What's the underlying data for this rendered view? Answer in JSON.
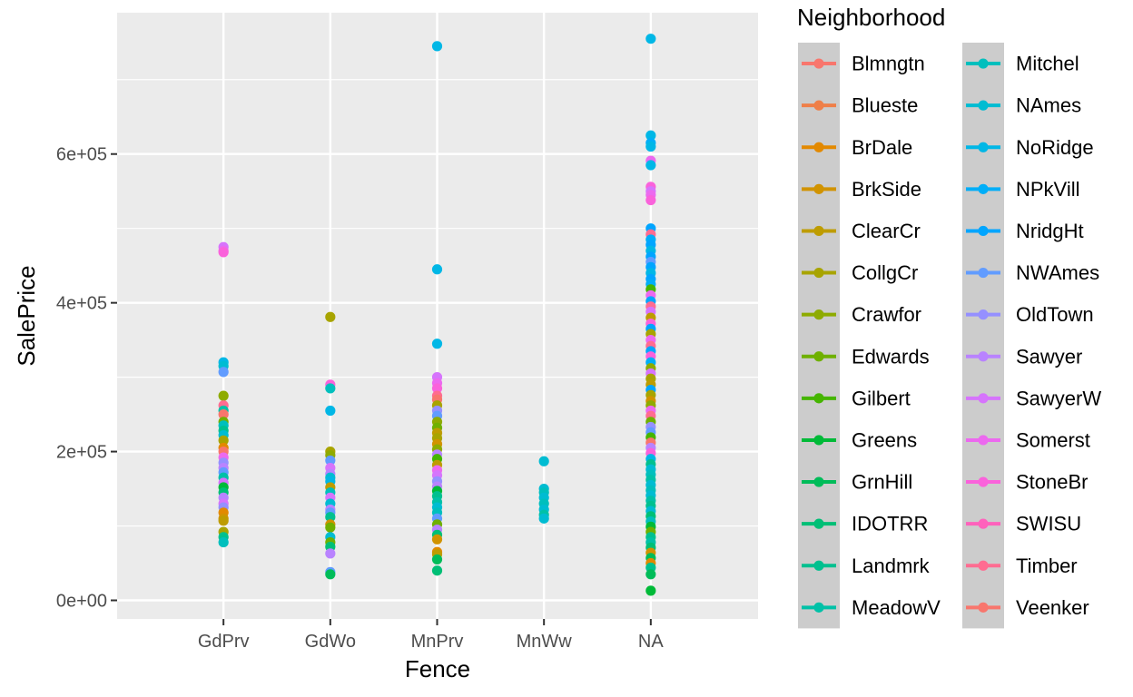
{
  "chart_data": {
    "type": "scatter",
    "title": "",
    "xlabel": "Fence",
    "ylabel": "SalePrice",
    "ylim": [
      -25000,
      790000
    ],
    "grid": true,
    "x_categories": [
      "GdPrv",
      "GdWo",
      "MnPrv",
      "MnWw",
      "NA"
    ],
    "y_ticks": [
      {
        "value": 0,
        "label": "0e+00"
      },
      {
        "value": 200000,
        "label": "2e+05"
      },
      {
        "value": 400000,
        "label": "4e+05"
      },
      {
        "value": 600000,
        "label": "6e+05"
      }
    ],
    "legend": {
      "title": "Neighborhood",
      "placement": "right",
      "entries": [
        {
          "name": "Blmngtn",
          "color": "#F8766D"
        },
        {
          "name": "Blueste",
          "color": "#EF7F48"
        },
        {
          "name": "BrDale",
          "color": "#E38900"
        },
        {
          "name": "BrkSide",
          "color": "#D19300"
        },
        {
          "name": "ClearCr",
          "color": "#BE9C00"
        },
        {
          "name": "CollgCr",
          "color": "#A8A400"
        },
        {
          "name": "Crawfor",
          "color": "#8EAB00"
        },
        {
          "name": "Edwards",
          "color": "#6FB000"
        },
        {
          "name": "Gilbert",
          "color": "#45B500"
        },
        {
          "name": "Greens",
          "color": "#00BA38"
        },
        {
          "name": "GrnHill",
          "color": "#00BC59"
        },
        {
          "name": "IDOTRR",
          "color": "#00BF76"
        },
        {
          "name": "Landmrk",
          "color": "#00C08F"
        },
        {
          "name": "MeadowV",
          "color": "#00C1A7"
        },
        {
          "name": "Mitchel",
          "color": "#00BFBD"
        },
        {
          "name": "NAmes",
          "color": "#00BCD2"
        },
        {
          "name": "NoRidge",
          "color": "#00B7E6"
        },
        {
          "name": "NPkVill",
          "color": "#00AEF8"
        },
        {
          "name": "NridgHt",
          "color": "#00A5FF"
        },
        {
          "name": "NWAmes",
          "color": "#619CFF"
        },
        {
          "name": "OldTown",
          "color": "#9590FF"
        },
        {
          "name": "Sawyer",
          "color": "#B983FF"
        },
        {
          "name": "SawyerW",
          "color": "#D674FC"
        },
        {
          "name": "Somerst",
          "color": "#EC69EF"
        },
        {
          "name": "StoneBr",
          "color": "#FA62DB"
        },
        {
          "name": "SWISU",
          "color": "#FF62BC"
        },
        {
          "name": "Timber",
          "color": "#FF6C91"
        },
        {
          "name": "Veenker",
          "color": "#F8766D"
        }
      ]
    },
    "points": [
      {
        "x": "GdPrv",
        "y": 475000,
        "n": "SawyerW"
      },
      {
        "x": "GdPrv",
        "y": 470000,
        "n": "Somerst"
      },
      {
        "x": "GdPrv",
        "y": 468000,
        "n": "StoneBr"
      },
      {
        "x": "GdPrv",
        "y": 320000,
        "n": "NoRidge"
      },
      {
        "x": "GdPrv",
        "y": 315000,
        "n": "NAmes"
      },
      {
        "x": "GdPrv",
        "y": 307000,
        "n": "NWAmes"
      },
      {
        "x": "GdPrv",
        "y": 275000,
        "n": "Crawfor"
      },
      {
        "x": "GdPrv",
        "y": 262000,
        "n": "Timber"
      },
      {
        "x": "GdPrv",
        "y": 255000,
        "n": "MeadowV"
      },
      {
        "x": "GdPrv",
        "y": 250000,
        "n": "Veenker"
      },
      {
        "x": "GdPrv",
        "y": 240000,
        "n": "Edwards"
      },
      {
        "x": "GdPrv",
        "y": 235000,
        "n": "Mitchel"
      },
      {
        "x": "GdPrv",
        "y": 228000,
        "n": "Landmrk"
      },
      {
        "x": "GdPrv",
        "y": 222000,
        "n": "NAmes"
      },
      {
        "x": "GdPrv",
        "y": 215000,
        "n": "CollgCr"
      },
      {
        "x": "GdPrv",
        "y": 205000,
        "n": "BrDale"
      },
      {
        "x": "GdPrv",
        "y": 200000,
        "n": "Blmngtn"
      },
      {
        "x": "GdPrv",
        "y": 192000,
        "n": "Somerst"
      },
      {
        "x": "GdPrv",
        "y": 185000,
        "n": "OldTown"
      },
      {
        "x": "GdPrv",
        "y": 178000,
        "n": "Sawyer"
      },
      {
        "x": "GdPrv",
        "y": 172000,
        "n": "NWAmes"
      },
      {
        "x": "GdPrv",
        "y": 165000,
        "n": "MeadowV"
      },
      {
        "x": "GdPrv",
        "y": 158000,
        "n": "SawyerW"
      },
      {
        "x": "GdPrv",
        "y": 152000,
        "n": "Greens"
      },
      {
        "x": "GdPrv",
        "y": 145000,
        "n": "IDOTRR"
      },
      {
        "x": "GdPrv",
        "y": 138000,
        "n": "Sawyer"
      },
      {
        "x": "GdPrv",
        "y": 130000,
        "n": "SawyerW"
      },
      {
        "x": "GdPrv",
        "y": 125000,
        "n": "OldTown"
      },
      {
        "x": "GdPrv",
        "y": 118000,
        "n": "BrDale"
      },
      {
        "x": "GdPrv",
        "y": 110000,
        "n": "BrkSide"
      },
      {
        "x": "GdPrv",
        "y": 107000,
        "n": "ClearCr"
      },
      {
        "x": "GdPrv",
        "y": 92000,
        "n": "CollgCr"
      },
      {
        "x": "GdPrv",
        "y": 85000,
        "n": "Landmrk"
      },
      {
        "x": "GdPrv",
        "y": 78000,
        "n": "Mitchel"
      },
      {
        "x": "GdWo",
        "y": 381000,
        "n": "CollgCr"
      },
      {
        "x": "GdWo",
        "y": 290000,
        "n": "StoneBr"
      },
      {
        "x": "GdWo",
        "y": 285000,
        "n": "Mitchel"
      },
      {
        "x": "GdWo",
        "y": 255000,
        "n": "NoRidge"
      },
      {
        "x": "GdWo",
        "y": 200000,
        "n": "CollgCr"
      },
      {
        "x": "GdWo",
        "y": 195000,
        "n": "Crawfor"
      },
      {
        "x": "GdWo",
        "y": 188000,
        "n": "NWAmes"
      },
      {
        "x": "GdWo",
        "y": 178000,
        "n": "SawyerW"
      },
      {
        "x": "GdWo",
        "y": 170000,
        "n": "Sawyer"
      },
      {
        "x": "GdWo",
        "y": 165000,
        "n": "NAmes"
      },
      {
        "x": "GdWo",
        "y": 160000,
        "n": "NoRidge"
      },
      {
        "x": "GdWo",
        "y": 152000,
        "n": "ClearCr"
      },
      {
        "x": "GdWo",
        "y": 145000,
        "n": "Mitchel"
      },
      {
        "x": "GdWo",
        "y": 138000,
        "n": "SawyerW"
      },
      {
        "x": "GdWo",
        "y": 130000,
        "n": "NAmes"
      },
      {
        "x": "GdWo",
        "y": 122000,
        "n": "Sawyer"
      },
      {
        "x": "GdWo",
        "y": 118000,
        "n": "NWAmes"
      },
      {
        "x": "GdWo",
        "y": 112000,
        "n": "Landmrk"
      },
      {
        "x": "GdWo",
        "y": 102000,
        "n": "BrkSide"
      },
      {
        "x": "GdWo",
        "y": 98000,
        "n": "Edwards"
      },
      {
        "x": "GdWo",
        "y": 85000,
        "n": "NAmes"
      },
      {
        "x": "GdWo",
        "y": 78000,
        "n": "Edwards"
      },
      {
        "x": "GdWo",
        "y": 72000,
        "n": "IDOTRR"
      },
      {
        "x": "GdWo",
        "y": 63000,
        "n": "Sawyer"
      },
      {
        "x": "GdWo",
        "y": 38000,
        "n": "NWAmes"
      },
      {
        "x": "GdWo",
        "y": 35000,
        "n": "GrnHill"
      },
      {
        "x": "MnPrv",
        "y": 745000,
        "n": "NoRidge"
      },
      {
        "x": "MnPrv",
        "y": 445000,
        "n": "NoRidge"
      },
      {
        "x": "MnPrv",
        "y": 345000,
        "n": "NoRidge"
      },
      {
        "x": "MnPrv",
        "y": 300000,
        "n": "SawyerW"
      },
      {
        "x": "MnPrv",
        "y": 292000,
        "n": "Somerst"
      },
      {
        "x": "MnPrv",
        "y": 285000,
        "n": "StoneBr"
      },
      {
        "x": "MnPrv",
        "y": 275000,
        "n": "Timber"
      },
      {
        "x": "MnPrv",
        "y": 270000,
        "n": "Blmngtn"
      },
      {
        "x": "MnPrv",
        "y": 262000,
        "n": "CollgCr"
      },
      {
        "x": "MnPrv",
        "y": 255000,
        "n": "OldTown"
      },
      {
        "x": "MnPrv",
        "y": 248000,
        "n": "NWAmes"
      },
      {
        "x": "MnPrv",
        "y": 240000,
        "n": "Crawfor"
      },
      {
        "x": "MnPrv",
        "y": 232000,
        "n": "Edwards"
      },
      {
        "x": "MnPrv",
        "y": 225000,
        "n": "ClearCr"
      },
      {
        "x": "MnPrv",
        "y": 218000,
        "n": "CollgCr"
      },
      {
        "x": "MnPrv",
        "y": 210000,
        "n": "BrkSide"
      },
      {
        "x": "MnPrv",
        "y": 203000,
        "n": "Crawfor"
      },
      {
        "x": "MnPrv",
        "y": 196000,
        "n": "Sawyer"
      },
      {
        "x": "MnPrv",
        "y": 190000,
        "n": "Gilbert"
      },
      {
        "x": "MnPrv",
        "y": 182000,
        "n": "ClearCr"
      },
      {
        "x": "MnPrv",
        "y": 175000,
        "n": "Somerst"
      },
      {
        "x": "MnPrv",
        "y": 168000,
        "n": "SawyerW"
      },
      {
        "x": "MnPrv",
        "y": 160000,
        "n": "OldTown"
      },
      {
        "x": "MnPrv",
        "y": 153000,
        "n": "Sawyer"
      },
      {
        "x": "MnPrv",
        "y": 147000,
        "n": "Greens"
      },
      {
        "x": "MnPrv",
        "y": 140000,
        "n": "Landmrk"
      },
      {
        "x": "MnPrv",
        "y": 132000,
        "n": "MeadowV"
      },
      {
        "x": "MnPrv",
        "y": 125000,
        "n": "NAmes"
      },
      {
        "x": "MnPrv",
        "y": 118000,
        "n": "Mitchel"
      },
      {
        "x": "MnPrv",
        "y": 110000,
        "n": "NWAmes"
      },
      {
        "x": "MnPrv",
        "y": 102000,
        "n": "Edwards"
      },
      {
        "x": "MnPrv",
        "y": 95000,
        "n": "Sawyer"
      },
      {
        "x": "MnPrv",
        "y": 88000,
        "n": "IDOTRR"
      },
      {
        "x": "MnPrv",
        "y": 82000,
        "n": "BrkSide"
      },
      {
        "x": "MnPrv",
        "y": 65000,
        "n": "BrDale"
      },
      {
        "x": "MnPrv",
        "y": 62000,
        "n": "ClearCr"
      },
      {
        "x": "MnPrv",
        "y": 55000,
        "n": "GrnHill"
      },
      {
        "x": "MnPrv",
        "y": 40000,
        "n": "IDOTRR"
      },
      {
        "x": "MnWw",
        "y": 187000,
        "n": "NAmes"
      },
      {
        "x": "MnWw",
        "y": 150000,
        "n": "NAmes"
      },
      {
        "x": "MnWw",
        "y": 145000,
        "n": "Mitchel"
      },
      {
        "x": "MnWw",
        "y": 138000,
        "n": "NAmes"
      },
      {
        "x": "MnWw",
        "y": 130000,
        "n": "Mitchel"
      },
      {
        "x": "MnWw",
        "y": 122000,
        "n": "NAmes"
      },
      {
        "x": "MnWw",
        "y": 115000,
        "n": "MeadowV"
      },
      {
        "x": "MnWw",
        "y": 110000,
        "n": "NAmes"
      },
      {
        "x": "NA",
        "y": 755000,
        "n": "NoRidge"
      },
      {
        "x": "NA",
        "y": 625000,
        "n": "NoRidge"
      },
      {
        "x": "NA",
        "y": 615000,
        "n": "NPkVill"
      },
      {
        "x": "NA",
        "y": 610000,
        "n": "NoRidge"
      },
      {
        "x": "NA",
        "y": 591000,
        "n": "Somerst"
      },
      {
        "x": "NA",
        "y": 585000,
        "n": "NoRidge"
      },
      {
        "x": "NA",
        "y": 556000,
        "n": "StoneBr"
      },
      {
        "x": "NA",
        "y": 550000,
        "n": "SawyerW"
      },
      {
        "x": "NA",
        "y": 545000,
        "n": "Somerst"
      },
      {
        "x": "NA",
        "y": 538000,
        "n": "StoneBr"
      },
      {
        "x": "NA",
        "y": 500000,
        "n": "NridgHt"
      },
      {
        "x": "NA",
        "y": 492000,
        "n": "Timber"
      },
      {
        "x": "NA",
        "y": 485000,
        "n": "NPkVill"
      },
      {
        "x": "NA",
        "y": 478000,
        "n": "NridgHt"
      },
      {
        "x": "NA",
        "y": 470000,
        "n": "NoRidge"
      },
      {
        "x": "NA",
        "y": 462000,
        "n": "NridgHt"
      },
      {
        "x": "NA",
        "y": 455000,
        "n": "NWAmes"
      },
      {
        "x": "NA",
        "y": 448000,
        "n": "NridgHt"
      },
      {
        "x": "NA",
        "y": 440000,
        "n": "NoRidge"
      },
      {
        "x": "NA",
        "y": 432000,
        "n": "NridgHt"
      },
      {
        "x": "NA",
        "y": 425000,
        "n": "NPkVill"
      },
      {
        "x": "NA",
        "y": 418000,
        "n": "Gilbert"
      },
      {
        "x": "NA",
        "y": 410000,
        "n": "Somerst"
      },
      {
        "x": "NA",
        "y": 402000,
        "n": "NridgHt"
      },
      {
        "x": "NA",
        "y": 395000,
        "n": "Timber"
      },
      {
        "x": "NA",
        "y": 388000,
        "n": "SawyerW"
      },
      {
        "x": "NA",
        "y": 380000,
        "n": "ClearCr"
      },
      {
        "x": "NA",
        "y": 372000,
        "n": "StoneBr"
      },
      {
        "x": "NA",
        "y": 365000,
        "n": "NridgHt"
      },
      {
        "x": "NA",
        "y": 358000,
        "n": "CollgCr"
      },
      {
        "x": "NA",
        "y": 350000,
        "n": "Somerst"
      },
      {
        "x": "NA",
        "y": 342000,
        "n": "Timber"
      },
      {
        "x": "NA",
        "y": 335000,
        "n": "NridgHt"
      },
      {
        "x": "NA",
        "y": 328000,
        "n": "StoneBr"
      },
      {
        "x": "NA",
        "y": 320000,
        "n": "NPkVill"
      },
      {
        "x": "NA",
        "y": 312000,
        "n": "Crawfor"
      },
      {
        "x": "NA",
        "y": 305000,
        "n": "SawyerW"
      },
      {
        "x": "NA",
        "y": 298000,
        "n": "CollgCr"
      },
      {
        "x": "NA",
        "y": 290000,
        "n": "ClearCr"
      },
      {
        "x": "NA",
        "y": 283000,
        "n": "NridgHt"
      },
      {
        "x": "NA",
        "y": 276000,
        "n": "CollgCr"
      },
      {
        "x": "NA",
        "y": 268000,
        "n": "BrkSide"
      },
      {
        "x": "NA",
        "y": 262000,
        "n": "Crawfor"
      },
      {
        "x": "NA",
        "y": 255000,
        "n": "Somerst"
      },
      {
        "x": "NA",
        "y": 248000,
        "n": "Timber"
      },
      {
        "x": "NA",
        "y": 240000,
        "n": "Edwards"
      },
      {
        "x": "NA",
        "y": 233000,
        "n": "OldTown"
      },
      {
        "x": "NA",
        "y": 226000,
        "n": "NWAmes"
      },
      {
        "x": "NA",
        "y": 219000,
        "n": "Gilbert"
      },
      {
        "x": "NA",
        "y": 212000,
        "n": "Blmngtn"
      },
      {
        "x": "NA",
        "y": 205000,
        "n": "Sawyer"
      },
      {
        "x": "NA",
        "y": 198000,
        "n": "StoneBr"
      },
      {
        "x": "NA",
        "y": 190000,
        "n": "NoRidge"
      },
      {
        "x": "NA",
        "y": 183000,
        "n": "Landmrk"
      },
      {
        "x": "NA",
        "y": 176000,
        "n": "NAmes"
      },
      {
        "x": "NA",
        "y": 169000,
        "n": "Mitchel"
      },
      {
        "x": "NA",
        "y": 162000,
        "n": "MeadowV"
      },
      {
        "x": "NA",
        "y": 155000,
        "n": "NAmes"
      },
      {
        "x": "NA",
        "y": 148000,
        "n": "Mitchel"
      },
      {
        "x": "NA",
        "y": 141000,
        "n": "NAmes"
      },
      {
        "x": "NA",
        "y": 134000,
        "n": "MeadowV"
      },
      {
        "x": "NA",
        "y": 127000,
        "n": "Landmrk"
      },
      {
        "x": "NA",
        "y": 120000,
        "n": "NAmes"
      },
      {
        "x": "NA",
        "y": 113000,
        "n": "IDOTRR"
      },
      {
        "x": "NA",
        "y": 106000,
        "n": "Mitchel"
      },
      {
        "x": "NA",
        "y": 99000,
        "n": "Greens"
      },
      {
        "x": "NA",
        "y": 92000,
        "n": "Edwards"
      },
      {
        "x": "NA",
        "y": 85000,
        "n": "Landmrk"
      },
      {
        "x": "NA",
        "y": 78000,
        "n": "MeadowV"
      },
      {
        "x": "NA",
        "y": 71000,
        "n": "IDOTRR"
      },
      {
        "x": "NA",
        "y": 64000,
        "n": "BrkSide"
      },
      {
        "x": "NA",
        "y": 57000,
        "n": "GrnHill"
      },
      {
        "x": "NA",
        "y": 50000,
        "n": "BrDale"
      },
      {
        "x": "NA",
        "y": 44000,
        "n": "Landmrk"
      },
      {
        "x": "NA",
        "y": 35000,
        "n": "GrnHill"
      },
      {
        "x": "NA",
        "y": 13000,
        "n": "Greens"
      }
    ]
  }
}
